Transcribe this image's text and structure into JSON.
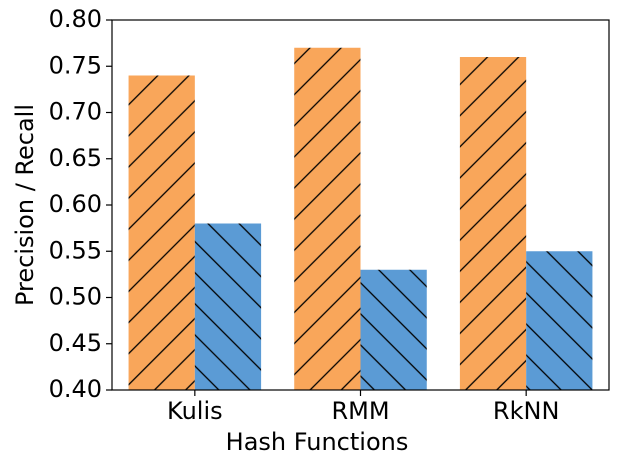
{
  "chart_data": {
    "type": "bar",
    "xlabel": "Hash Functions",
    "ylabel": "Precision / Recall",
    "categories": [
      "Kulis",
      "RMM",
      "RkNN"
    ],
    "series": [
      {
        "color": "#f9a65a",
        "hatch": "/",
        "values": [
          0.74,
          0.77,
          0.76
        ]
      },
      {
        "color": "#5b9bd5",
        "hatch": "\\",
        "values": [
          0.58,
          0.53,
          0.55
        ]
      }
    ],
    "ylim": [
      0.4,
      0.8
    ],
    "yticks": [
      {
        "value": 0.4,
        "label": "0.40"
      },
      {
        "value": 0.45,
        "label": "0.45"
      },
      {
        "value": 0.5,
        "label": "0.50"
      },
      {
        "value": 0.55,
        "label": "0.55"
      },
      {
        "value": 0.6,
        "label": "0.60"
      },
      {
        "value": 0.65,
        "label": "0.65"
      },
      {
        "value": 0.7,
        "label": "0.70"
      },
      {
        "value": 0.75,
        "label": "0.75"
      },
      {
        "value": 0.8,
        "label": "0.80"
      }
    ],
    "grid": false
  }
}
